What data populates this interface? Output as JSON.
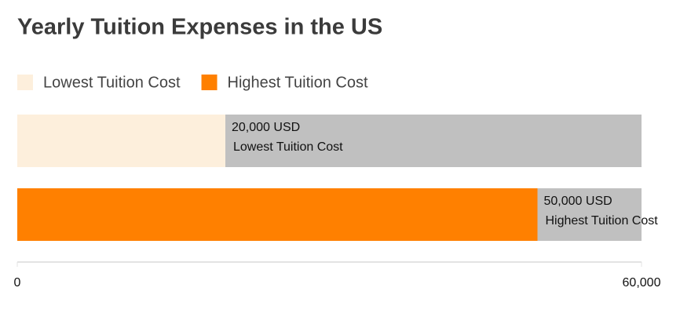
{
  "chart_data": {
    "type": "hbar",
    "title": "Yearly Tuition Expenses in the US",
    "categories": [
      "Lowest Tuition Cost",
      "Highest Tuition Cost"
    ],
    "values": [
      20000,
      50000
    ],
    "value_labels": [
      "20,000 USD",
      "50,000 USD"
    ],
    "colors": [
      "#fdefdc",
      "#ff8000"
    ],
    "track_color": "#c0c0c0",
    "xlim": [
      0,
      60000
    ],
    "xticks": [
      0,
      {
        "value": 60000,
        "label": "60,000"
      }
    ]
  }
}
